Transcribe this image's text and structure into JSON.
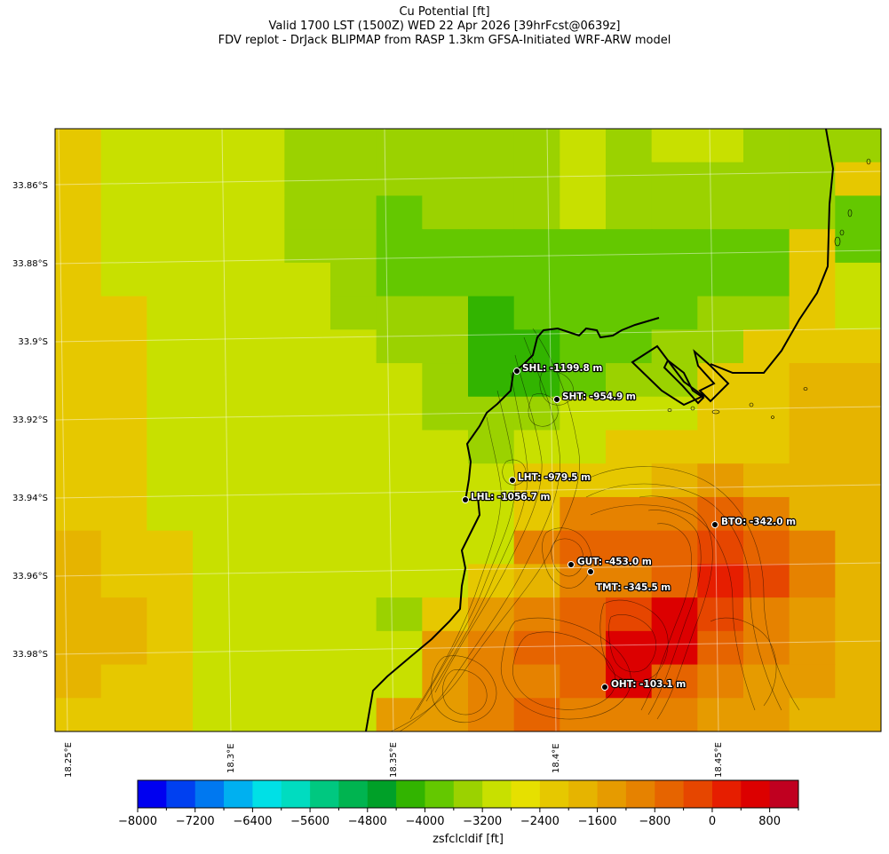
{
  "title": {
    "line1": "Cu Potential [ft]",
    "line2": "Valid 1700 LST (1500Z) WED 22 Apr 2026 [39hrFcst@0639z]",
    "line3": "FDV replot - DrJack BLIPMAP from RASP 1.3km GFSA-Initiated WRF-ARW model"
  },
  "latitude_labels": [
    "33.86°S",
    "33.88°S",
    "33.9°S",
    "33.92°S",
    "33.94°S",
    "33.96°S",
    "33.98°S"
  ],
  "longitude_labels": [
    "18.25°E",
    "18.3°E",
    "18.35°E",
    "18.4°E",
    "18.45°E"
  ],
  "stations": [
    {
      "id": "SHL",
      "label": "SHL: -1199.8 m"
    },
    {
      "id": "SHT",
      "label": "SHT: -954.9 m"
    },
    {
      "id": "LHT",
      "label": "LHT: -979.5 m"
    },
    {
      "id": "LHL",
      "label": "LHL: -1056.7 m"
    },
    {
      "id": "BTO",
      "label": "BTO: -342.0 m"
    },
    {
      "id": "GUT",
      "label": "GUT: -453.0 m"
    },
    {
      "id": "TMT",
      "label": "TMT: -345.5 m"
    },
    {
      "id": "OHT",
      "label": "OHT: -103.1 m"
    }
  ],
  "colorbar": {
    "label": "zsfclcldif [ft]",
    "min": -8000,
    "max": 1200,
    "step": 400,
    "tick_labels": [
      "−8000",
      "−7200",
      "−6400",
      "−5600",
      "−4800",
      "−4000",
      "−3200",
      "−2400",
      "−1600",
      "−800",
      "0",
      "800"
    ],
    "colors": [
      "#0000f0",
      "#0040f0",
      "#0078f0",
      "#00b0f0",
      "#00e0e6",
      "#00dcc0",
      "#00c880",
      "#00b450",
      "#00a028",
      "#32b400",
      "#64c800",
      "#9bd200",
      "#c8e000",
      "#e6e000",
      "#e6c800",
      "#e6b400",
      "#e69b00",
      "#e68200",
      "#e66400",
      "#e64600",
      "#e61e00",
      "#dc0000",
      "#c00020"
    ]
  },
  "chart_data": {
    "type": "heatmap",
    "title": "Cu Potential [ft]",
    "variable": "zsfclcldif [ft]",
    "lon_range": [
      18.245,
      18.495
    ],
    "lat_range": [
      -33.999,
      -33.846
    ],
    "value_range": [
      -8000,
      1200
    ],
    "grid_values_ft": [
      [
        -2400,
        -3200,
        -3200,
        -3200,
        -3200,
        -3600,
        -3600,
        -3600,
        -3600,
        -3600,
        -3600,
        -3200,
        -3600,
        -3200,
        -3200,
        -3600,
        -3600,
        -3600
      ],
      [
        -2400,
        -3200,
        -3200,
        -3200,
        -3200,
        -3600,
        -3600,
        -3600,
        -3600,
        -3600,
        -3600,
        -3200,
        -3600,
        -3600,
        -3600,
        -3600,
        -3600,
        -2400
      ],
      [
        -2400,
        -3200,
        -3200,
        -3200,
        -3200,
        -3600,
        -3600,
        -4000,
        -3600,
        -3600,
        -3600,
        -3200,
        -3600,
        -3600,
        -3600,
        -3600,
        -3600,
        -4000
      ],
      [
        -2400,
        -3200,
        -3200,
        -3200,
        -3200,
        -3600,
        -3600,
        -4000,
        -4000,
        -4000,
        -4000,
        -4000,
        -4000,
        -4000,
        -4000,
        -4000,
        -2400,
        -4000
      ],
      [
        -2400,
        -3200,
        -3200,
        -3200,
        -3200,
        -3200,
        -3600,
        -4000,
        -4000,
        -4000,
        -4000,
        -4000,
        -4000,
        -4000,
        -4000,
        -4000,
        -2400,
        -3200
      ],
      [
        -2400,
        -2400,
        -3200,
        -3200,
        -3200,
        -3200,
        -3600,
        -3600,
        -3600,
        -4400,
        -4000,
        -4000,
        -4000,
        -4000,
        -3600,
        -3600,
        -2400,
        -3200
      ],
      [
        -2400,
        -2400,
        -3200,
        -3200,
        -3200,
        -3200,
        -3200,
        -3600,
        -3600,
        -4400,
        -4400,
        -4000,
        -4000,
        -3600,
        -3600,
        -2400,
        -2400,
        -2400
      ],
      [
        -2400,
        -2400,
        -3200,
        -3200,
        -3200,
        -3200,
        -3200,
        -3200,
        -3600,
        -4400,
        -4400,
        -4000,
        -3600,
        -3600,
        -2400,
        -2400,
        -2000,
        -2000
      ],
      [
        -2400,
        -2400,
        -3200,
        -3200,
        -3200,
        -3200,
        -3200,
        -3200,
        -3600,
        -3600,
        -3600,
        -3200,
        -3200,
        -3200,
        -2400,
        -2400,
        -2000,
        -2000
      ],
      [
        -2400,
        -2400,
        -3200,
        -3200,
        -3200,
        -3200,
        -3200,
        -3200,
        -3200,
        -3600,
        -3200,
        -3200,
        -2400,
        -2400,
        -2400,
        -2400,
        -2000,
        -2000
      ],
      [
        -2400,
        -2400,
        -3200,
        -3200,
        -3200,
        -3200,
        -3200,
        -3200,
        -3200,
        -3200,
        -2400,
        -2400,
        -2400,
        -2000,
        -1600,
        -2000,
        -2000,
        -2000
      ],
      [
        -2400,
        -2400,
        -3200,
        -3200,
        -3200,
        -3200,
        -3200,
        -3200,
        -3200,
        -3200,
        -2400,
        -1200,
        -1200,
        -1200,
        -800,
        -1200,
        -2000,
        -2000
      ],
      [
        -2000,
        -2400,
        -2400,
        -3200,
        -3200,
        -3200,
        -3200,
        -3200,
        -3200,
        -3200,
        -1200,
        -800,
        -800,
        -800,
        -400,
        -800,
        -1200,
        -2000
      ],
      [
        -2000,
        -2400,
        -2400,
        -3200,
        -3200,
        -3200,
        -3200,
        -3200,
        -3200,
        -2400,
        -2000,
        -1200,
        -1200,
        -800,
        0,
        -400,
        -1200,
        -2000
      ],
      [
        -2000,
        -2000,
        -2400,
        -3200,
        -3200,
        -3200,
        -3200,
        -3600,
        -2400,
        -1600,
        -1200,
        -800,
        -400,
        400,
        -400,
        -1200,
        -1600,
        -2000
      ],
      [
        -2000,
        -2000,
        -2400,
        -3200,
        -3200,
        -3200,
        -3200,
        -3200,
        -1600,
        -1200,
        -800,
        -800,
        400,
        400,
        -800,
        -1200,
        -1600,
        -2000
      ],
      [
        -2000,
        -2400,
        -2400,
        -3200,
        -3200,
        -3200,
        -3200,
        -3200,
        -1600,
        -1200,
        -1200,
        -800,
        400,
        -800,
        -1200,
        -1600,
        -1600,
        -2000
      ],
      [
        -2400,
        -2400,
        -2400,
        -3200,
        -3200,
        -3200,
        -3200,
        -1600,
        -1600,
        -1200,
        -800,
        -1200,
        -1200,
        -1200,
        -1600,
        -1600,
        -2000,
        -2000
      ]
    ],
    "stations": [
      {
        "id": "SHL",
        "lon": 18.391,
        "lat": -33.9075,
        "value_m": -1199.8
      },
      {
        "id": "SHT",
        "lon": 18.4,
        "lat": -33.9145,
        "value_m": -954.9
      },
      {
        "id": "LHT",
        "lon": 18.39,
        "lat": -33.9345,
        "value_m": -979.5
      },
      {
        "id": "LHL",
        "lon": 18.375,
        "lat": -33.94,
        "value_m": -1056.7
      },
      {
        "id": "BTO",
        "lon": 18.45,
        "lat": -33.947,
        "value_m": -342.0
      },
      {
        "id": "GUT",
        "lon": 18.414,
        "lat": -33.9575,
        "value_m": -453.0
      },
      {
        "id": "TMT",
        "lon": 18.42,
        "lat": -33.959,
        "value_m": -345.5
      },
      {
        "id": "OHT",
        "lon": 18.425,
        "lat": -33.989,
        "value_m": -103.1
      }
    ]
  }
}
